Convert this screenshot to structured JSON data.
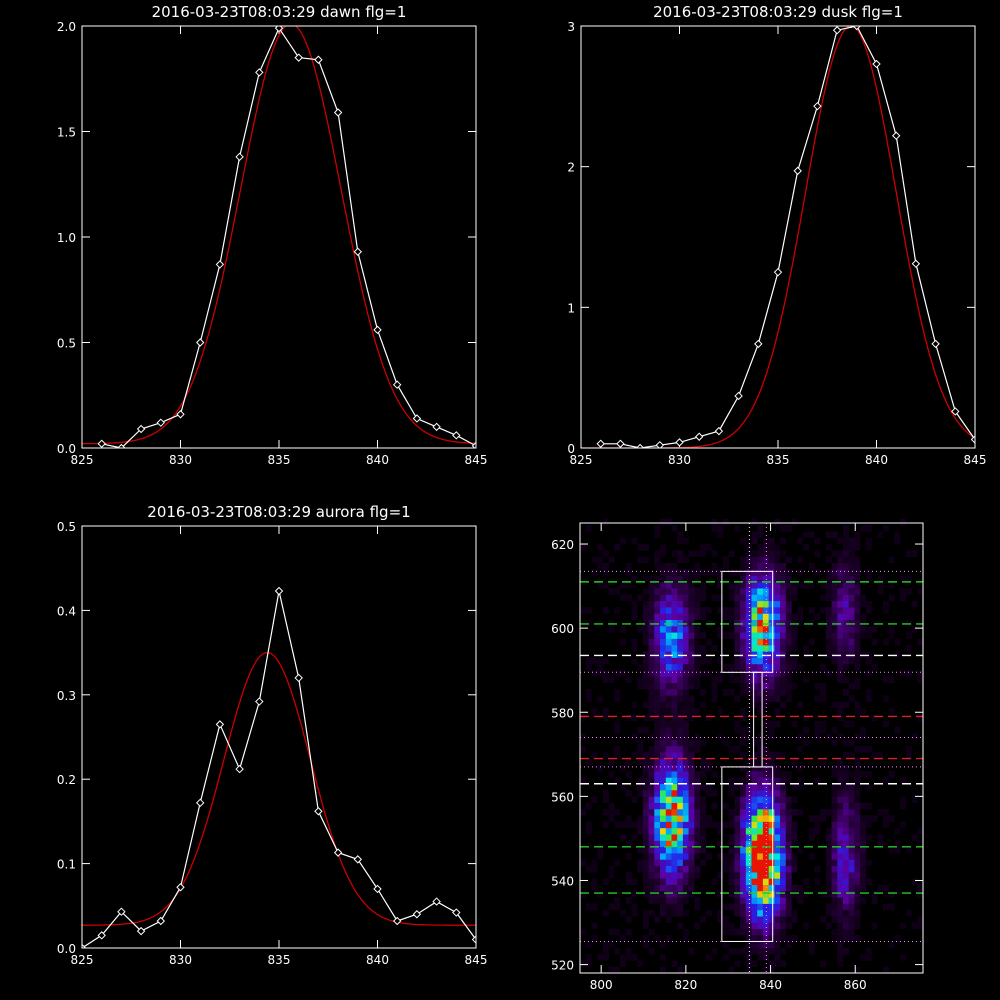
{
  "chart_data": [
    {
      "type": "line",
      "title": "2016-03-23T08:03:29 dawn flg=1",
      "xlim": [
        825,
        845
      ],
      "ylim": [
        0,
        2.0
      ],
      "xticks": [
        825,
        830,
        835,
        840,
        845
      ],
      "xtick_labels": [
        "825",
        "830",
        "835",
        "840",
        "845"
      ],
      "yticks": [
        0,
        0.5,
        1.0,
        1.5,
        2.0
      ],
      "ytick_labels": [
        "0.0",
        "0.5",
        "1.0",
        "1.5",
        "2.0"
      ],
      "series": [
        {
          "kind": "data",
          "color": "#ffffff",
          "x": [
            826,
            827,
            828,
            829,
            830,
            831,
            832,
            833,
            834,
            835,
            836,
            837,
            838,
            839,
            840,
            841,
            842,
            843,
            844,
            845
          ],
          "y": [
            0.02,
            0.0,
            0.09,
            0.12,
            0.16,
            0.5,
            0.87,
            1.38,
            1.78,
            1.99,
            1.85,
            1.84,
            1.59,
            0.93,
            0.56,
            0.3,
            0.14,
            0.1,
            0.06,
            0.01
          ]
        },
        {
          "kind": "fit",
          "color": "#cc0000",
          "amp": 1.99,
          "center": 835.6,
          "sigma": 2.55,
          "offset": 0.02
        }
      ]
    },
    {
      "type": "line",
      "title": "2016-03-23T08:03:29 dusk flg=1",
      "xlim": [
        825,
        845
      ],
      "ylim": [
        0,
        3
      ],
      "xticks": [
        825,
        830,
        835,
        840,
        845
      ],
      "xtick_labels": [
        "825",
        "830",
        "835",
        "840",
        "845"
      ],
      "yticks": [
        0,
        1,
        2,
        3
      ],
      "ytick_labels": [
        "0",
        "1",
        "2",
        "3"
      ],
      "series": [
        {
          "kind": "data",
          "color": "#ffffff",
          "x": [
            826,
            827,
            828,
            829,
            830,
            831,
            832,
            833,
            834,
            835,
            836,
            837,
            838,
            839,
            840,
            841,
            842,
            843,
            844,
            845
          ],
          "y": [
            0.03,
            0.03,
            0.0,
            0.02,
            0.04,
            0.08,
            0.12,
            0.37,
            0.74,
            1.25,
            1.97,
            2.43,
            2.97,
            3.0,
            2.73,
            2.22,
            1.31,
            0.74,
            0.26,
            0.06
          ]
        },
        {
          "kind": "fit",
          "color": "#cc0000",
          "amp": 3.0,
          "center": 838.7,
          "sigma": 2.3,
          "offset": 0.0
        }
      ]
    },
    {
      "type": "line",
      "title": "2016-03-23T08:03:29 aurora flg=1",
      "xlim": [
        825,
        845
      ],
      "ylim": [
        0,
        0.5
      ],
      "xticks": [
        825,
        830,
        835,
        840,
        845
      ],
      "xtick_labels": [
        "825",
        "830",
        "835",
        "840",
        "845"
      ],
      "yticks": [
        0,
        0.1,
        0.2,
        0.3,
        0.4,
        0.5
      ],
      "ytick_labels": [
        "0.0",
        "0.1",
        "0.2",
        "0.3",
        "0.4",
        "0.5"
      ],
      "series": [
        {
          "kind": "data",
          "color": "#ffffff",
          "x": [
            825,
            826,
            827,
            828,
            829,
            830,
            831,
            832,
            833,
            834,
            835,
            836,
            837,
            838,
            839,
            840,
            841,
            842,
            843,
            844,
            845
          ],
          "y": [
            0.0,
            0.015,
            0.043,
            0.02,
            0.032,
            0.072,
            0.172,
            0.265,
            0.212,
            0.292,
            0.423,
            0.32,
            0.162,
            0.113,
            0.105,
            0.07,
            0.032,
            0.04,
            0.055,
            0.042,
            0.01
          ]
        },
        {
          "kind": "fit",
          "color": "#cc0000",
          "amp": 0.323,
          "center": 834.4,
          "sigma": 2.2,
          "offset": 0.027
        }
      ]
    },
    {
      "type": "heatmap",
      "xlim": [
        795,
        876
      ],
      "ylim": [
        518,
        625
      ],
      "xticks": [
        800,
        820,
        840,
        860
      ],
      "xtick_labels": [
        "800",
        "820",
        "840",
        "860"
      ],
      "yticks": [
        520,
        540,
        560,
        580,
        600,
        620
      ],
      "ytick_labels": [
        "520",
        "540",
        "560",
        "580",
        "600",
        "620"
      ],
      "emission_columns": [
        {
          "center": 816,
          "width": 4,
          "segments": [
            [
              554,
              7,
              1.0
            ],
            [
              597,
              6,
              0.55
            ]
          ]
        },
        {
          "center": 837.5,
          "width": 4,
          "segments": [
            [
              545,
              7,
              1.6
            ],
            [
              600,
              6,
              0.95
            ]
          ]
        },
        {
          "center": 857,
          "width": 3,
          "segments": [
            [
              545,
              7,
              0.35
            ],
            [
              603,
              6,
              0.25
            ]
          ]
        }
      ],
      "hlines": [
        {
          "y": 611,
          "color": "#22cc22",
          "style": "dashed"
        },
        {
          "y": 601,
          "color": "#22cc22",
          "style": "dashed"
        },
        {
          "y": 593.5,
          "color": "#ffffff",
          "style": "dashed"
        },
        {
          "y": 579,
          "color": "#dd2222",
          "style": "dashed"
        },
        {
          "y": 569,
          "color": "#dd2222",
          "style": "dashed"
        },
        {
          "y": 563,
          "color": "#ffffff",
          "style": "dashed"
        },
        {
          "y": 548,
          "color": "#22cc22",
          "style": "dashed"
        },
        {
          "y": 537,
          "color": "#22cc22",
          "style": "dashed"
        },
        {
          "y": 613.5,
          "color": "#ff88ff",
          "style": "dotted"
        },
        {
          "y": 589.5,
          "color": "#ff88ff",
          "style": "dotted"
        },
        {
          "y": 574,
          "color": "#ff88ff",
          "style": "dotted"
        },
        {
          "y": 567,
          "color": "#ff88ff",
          "style": "dotted"
        },
        {
          "y": 525.5,
          "color": "#ff88ff",
          "style": "dotted"
        }
      ],
      "vlines": [
        {
          "x": 835,
          "color": "#ffffff",
          "style": "dotted"
        },
        {
          "x": 839,
          "color": "#ff88ff",
          "style": "dotted"
        }
      ],
      "boxes": [
        {
          "x": [
            828.5,
            840.5
          ],
          "y": [
            589.5,
            613.5
          ]
        },
        {
          "x": [
            828.5,
            840.5
          ],
          "y": [
            525.5,
            567
          ]
        },
        {
          "x": [
            836,
            838
          ],
          "y": [
            567,
            589.5
          ]
        }
      ]
    }
  ]
}
